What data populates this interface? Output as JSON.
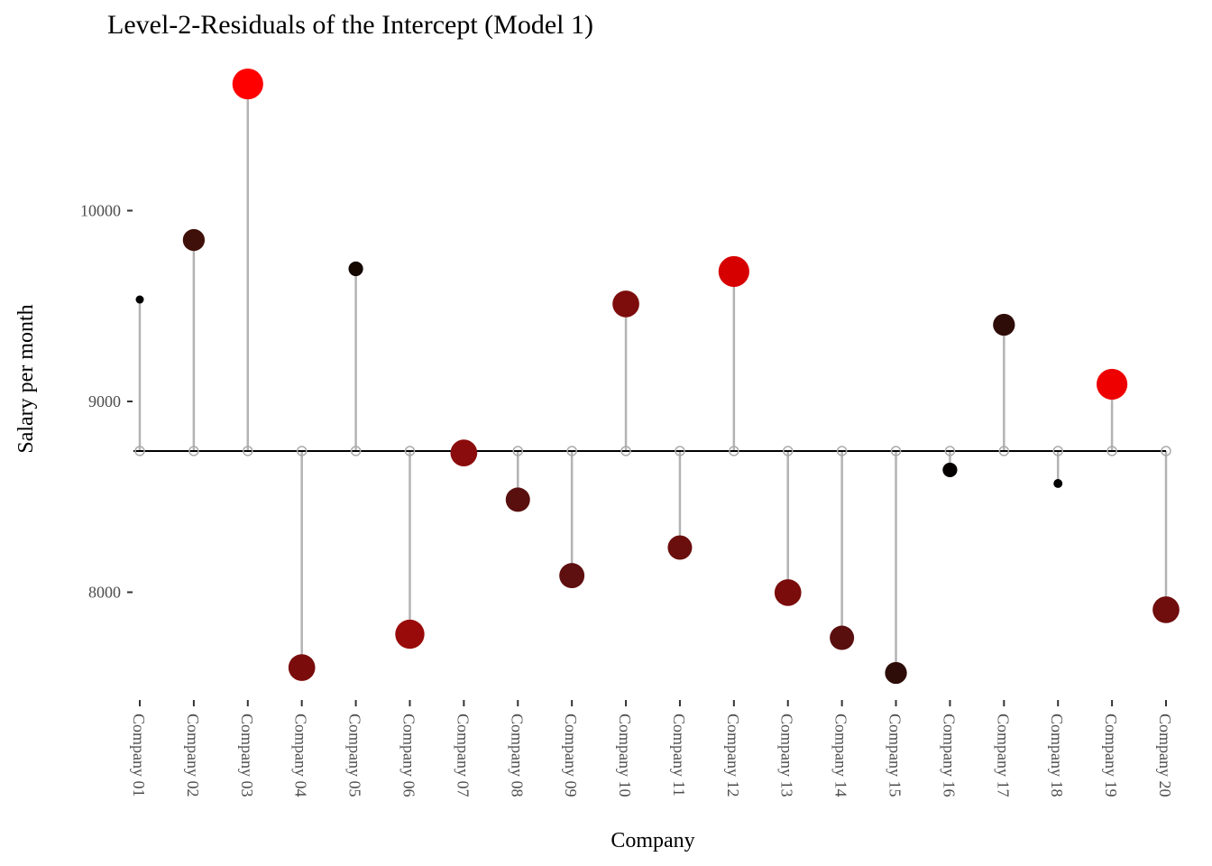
{
  "chart_data": {
    "type": "scatter",
    "subtype": "lollipop",
    "title": "Level-2-Residuals of the Intercept (Model 1)",
    "xlabel": "Company",
    "ylabel": "Salary per month",
    "ylim": [
      7500,
      10700
    ],
    "yticks": [
      8000,
      9000,
      10000
    ],
    "ytick_labels": [
      "8000",
      "9000",
      "10000"
    ],
    "reference_line": 8740,
    "grid": false,
    "categories": [
      "Company 01",
      "Company 02",
      "Company 03",
      "Company 04",
      "Company 05",
      "Company 06",
      "Company 07",
      "Company 08",
      "Company 09",
      "Company 10",
      "Company 11",
      "Company 12",
      "Company 13",
      "Company 14",
      "Company 15",
      "Company 16",
      "Company 17",
      "Company 18",
      "Company 19",
      "Company 20"
    ],
    "values": [
      9534,
      9846,
      10664,
      7605,
      9695,
      7780,
      8730,
      8485,
      8087,
      9511,
      8234,
      9681,
      7998,
      7761,
      7577,
      8641,
      9402,
      8570,
      9090,
      7908
    ],
    "point_size": [
      1,
      2.7,
      3.8,
      3.3,
      1.8,
      3.6,
      3.3,
      3,
      3.1,
      3.3,
      3,
      3.8,
      3.3,
      3,
      2.7,
      1.8,
      2.7,
      1.1,
      3.8,
      3.3
    ],
    "point_colors": [
      "#000000",
      "#3f100a",
      "#ff0000",
      "#7a0c0c",
      "#140800",
      "#990a0a",
      "#8a0c0c",
      "#5a0f0f",
      "#5e0f0f",
      "#7d0c0c",
      "#6a0e0e",
      "#d60000",
      "#7a0c0c",
      "#5a0f0f",
      "#2e0d08",
      "#050000",
      "#2e0d08",
      "#000000",
      "#ee0000",
      "#700d0d"
    ],
    "stem_color": "#b3b3b3"
  }
}
